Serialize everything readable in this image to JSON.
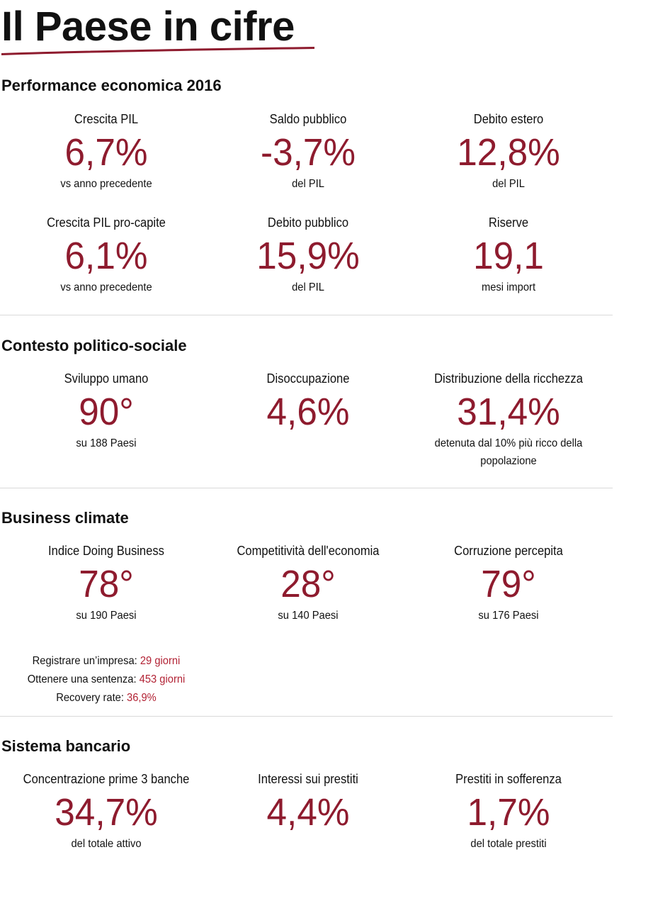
{
  "page": {
    "title": "Il Paese in cifre"
  },
  "colors": {
    "accent": "#8e1b2e",
    "highlight": "#b22234",
    "divider": "#d9d9d9"
  },
  "sections": {
    "economic": {
      "title": "Performance economica 2016",
      "metrics": [
        {
          "label": "Crescita PIL",
          "value": "6,7%",
          "sub": "vs anno precedente"
        },
        {
          "label": "Saldo pubblico",
          "value": "-3,7%",
          "sub": "del PIL"
        },
        {
          "label": "Debito estero",
          "value": "12,8%",
          "sub": "del PIL"
        },
        {
          "label": "Crescita PIL pro-capite",
          "value": "6,1%",
          "sub": "vs anno precedente"
        },
        {
          "label": "Debito pubblico",
          "value": "15,9%",
          "sub": "del PIL"
        },
        {
          "label": "Riserve",
          "value": "19,1",
          "sub": "mesi import"
        }
      ]
    },
    "political": {
      "title": "Contesto politico-sociale",
      "metrics": [
        {
          "label": "Sviluppo umano",
          "value": "90°",
          "sub": "su 188 Paesi"
        },
        {
          "label": "Disoccupazione",
          "value": "4,6%",
          "sub": ""
        },
        {
          "label": "Distribuzione della ricchezza",
          "value": "31,4%",
          "sub_line1": "detenuta dal 10% più ricco della",
          "sub_line2": "popolazione"
        }
      ]
    },
    "business": {
      "title": "Business climate",
      "metrics": [
        {
          "label": "Indice Doing Business",
          "value": "78°",
          "sub": "su 190 Paesi"
        },
        {
          "label": "Competitività dell'economia",
          "value": "28°",
          "sub": "su 140 Paesi"
        },
        {
          "label": "Corruzione percepita",
          "value": "79°",
          "sub": "su 176 Paesi"
        }
      ],
      "details": [
        {
          "label": "Registrare un’impresa:",
          "value": "29 giorni"
        },
        {
          "label": "Ottenere una sentenza:",
          "value": "453 giorni"
        },
        {
          "label": "Recovery rate:",
          "value": "36,9%"
        }
      ]
    },
    "banking": {
      "title": "Sistema bancario",
      "metrics": [
        {
          "label": "Concentrazione prime 3 banche",
          "value": "34,7%",
          "sub": "del totale attivo"
        },
        {
          "label": "Interessi sui prestiti",
          "value": "4,4%",
          "sub": ""
        },
        {
          "label": "Prestiti in sofferenza",
          "value": "1,7%",
          "sub": "del totale prestiti"
        }
      ]
    }
  }
}
